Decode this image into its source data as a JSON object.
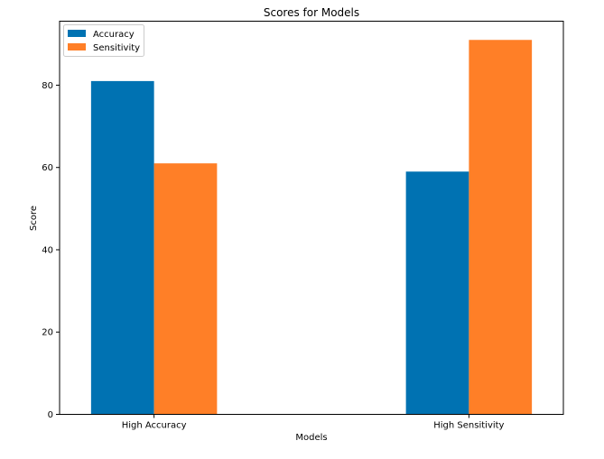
{
  "chart_data": {
    "type": "bar",
    "title": "Scores for Models",
    "xlabel": "Models",
    "ylabel": "Score",
    "categories": [
      "High Accuracy",
      "High Sensitivity"
    ],
    "series": [
      {
        "name": "Accuracy",
        "values": [
          81,
          59
        ],
        "color": "#0072B2"
      },
      {
        "name": "Sensitivity",
        "values": [
          61,
          91
        ],
        "color": "#FF7F27"
      }
    ],
    "ylim": [
      0,
      95.55
    ],
    "yticks": [
      0,
      20,
      40,
      60,
      80
    ],
    "grid": false,
    "legend": "top-left"
  }
}
